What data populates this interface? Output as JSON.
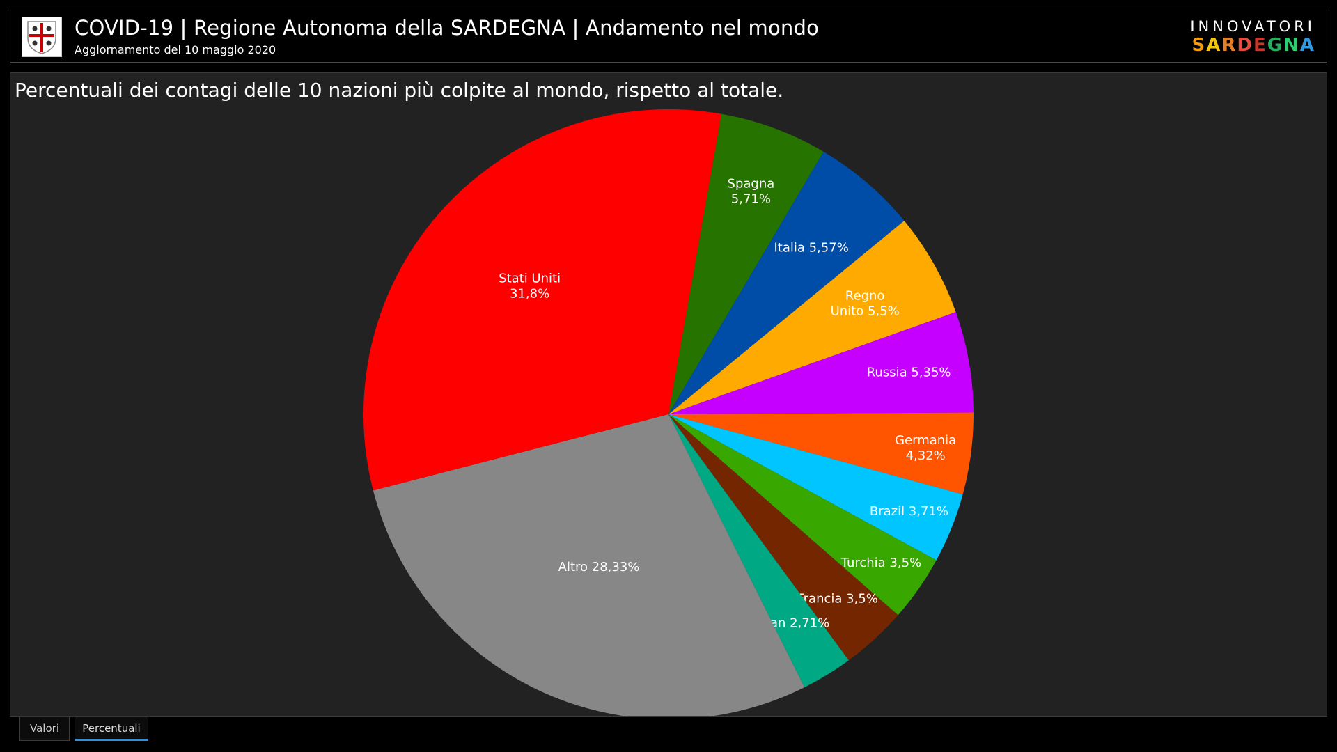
{
  "header": {
    "title": "COVID-19 | Regione Autonoma della SARDEGNA | Andamento nel mondo",
    "subtitle": "Aggiornamento del 10 maggio 2020",
    "brand_top": "INNOVATORI",
    "brand_bottom": "SARDEGNA",
    "brand_letters": [
      {
        "ch": "S",
        "color": "#f39c12"
      },
      {
        "ch": "A",
        "color": "#f1c40f"
      },
      {
        "ch": "R",
        "color": "#e67e22"
      },
      {
        "ch": "D",
        "color": "#e74c3c"
      },
      {
        "ch": "E",
        "color": "#c0392b"
      },
      {
        "ch": "G",
        "color": "#27ae60"
      },
      {
        "ch": "N",
        "color": "#2ecc71"
      },
      {
        "ch": "A",
        "color": "#3498db"
      }
    ]
  },
  "tabs": [
    {
      "label": "Valori",
      "active": false
    },
    {
      "label": "Percentuali",
      "active": true
    }
  ],
  "chart_data": {
    "type": "pie",
    "title": "Percentuali dei contagi delle 10 nazioni più colpite al mondo, rispetto al totale.",
    "slices": [
      {
        "name": "Spagna",
        "value": 5.71,
        "label": "Spagna\n5,71%",
        "color": "#267300"
      },
      {
        "name": "Italia",
        "value": 5.57,
        "label": "Italia 5,57%",
        "color": "#004da8"
      },
      {
        "name": "Regno Unito",
        "value": 5.5,
        "label": "Regno\nUnito 5,5%",
        "color": "#ffaa00"
      },
      {
        "name": "Russia",
        "value": 5.35,
        "label": "Russia 5,35%",
        "color": "#c500ff"
      },
      {
        "name": "Germania",
        "value": 4.32,
        "label": "Germania\n4,32%",
        "color": "#ff5500"
      },
      {
        "name": "Brazil",
        "value": 3.71,
        "label": "Brazil 3,71%",
        "color": "#00c5ff"
      },
      {
        "name": "Turchia",
        "value": 3.5,
        "label": "Turchia 3,5%",
        "color": "#38a800"
      },
      {
        "name": "Francia",
        "value": 3.5,
        "label": "Francia 3,5%",
        "color": "#732600"
      },
      {
        "name": "Iran",
        "value": 2.71,
        "label": "Iran 2,71%",
        "color": "#00a884"
      },
      {
        "name": "Altro",
        "value": 28.33,
        "label": "Altro 28,33%",
        "color": "#878787"
      },
      {
        "name": "Stati Uniti",
        "value": 31.8,
        "label": "Stati Uniti\n31,8%",
        "color": "#ff0000"
      }
    ]
  }
}
